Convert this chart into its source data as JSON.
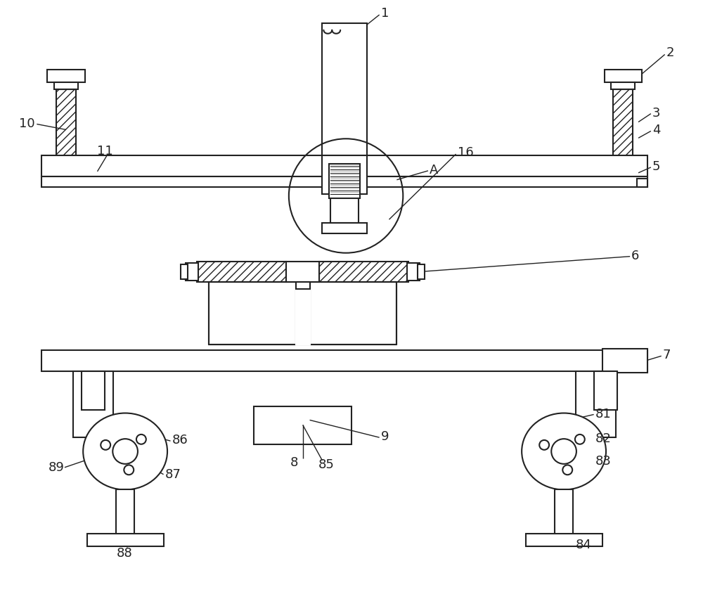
{
  "bg_color": "#ffffff",
  "line_color": "#222222",
  "lw": 1.5,
  "lw_thin": 1.0
}
